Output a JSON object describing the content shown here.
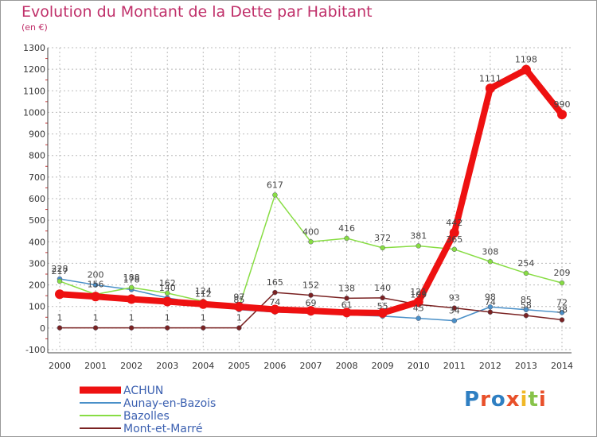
{
  "chart_data": {
    "type": "line",
    "title": "Evolution du Montant de la Dette par Habitant",
    "subtitle": "(en €)",
    "x": [
      "2000",
      "2001",
      "2002",
      "2003",
      "2004",
      "2005",
      "2006",
      "2007",
      "2008",
      "2009",
      "2010",
      "2011",
      "2012",
      "2013",
      "2014"
    ],
    "ylim": [
      -100,
      1300
    ],
    "yticks": [
      -100,
      0,
      100,
      200,
      300,
      400,
      500,
      600,
      700,
      800,
      900,
      1000,
      1100,
      1200,
      1300
    ],
    "grid": true,
    "legend": "bottom-left",
    "series": [
      {
        "name": "ACHUN",
        "color": "#ee1111",
        "values": [
          157,
          146,
          134,
          123,
          111,
          99,
          86,
          80,
          72,
          70,
          121,
          442,
          1111,
          1198,
          990
        ],
        "labels": [
          "",
          "",
          "",
          "",
          "",
          "",
          "",
          "",
          "",
          "",
          "121",
          "442",
          "1111",
          "1198",
          "990"
        ]
      },
      {
        "name": "Aunay-en-Bazois",
        "color": "#4a90c8",
        "values": [
          228,
          200,
          178,
          140,
          112,
          85,
          74,
          69,
          61,
          55,
          45,
          34,
          98,
          85,
          72
        ],
        "labels": [
          "228",
          "200",
          "178",
          "140",
          "112",
          "85",
          "74",
          "69",
          "61",
          "55",
          "45",
          "34",
          "98",
          "85",
          "72"
        ]
      },
      {
        "name": "Bazolles",
        "color": "#88dd44",
        "values": [
          217,
          156,
          188,
          162,
          124,
          97,
          617,
          400,
          416,
          372,
          381,
          365,
          308,
          254,
          209
        ],
        "labels": [
          "217",
          "156",
          "188",
          "162",
          "124",
          "97",
          "617",
          "400",
          "416",
          "372",
          "381",
          "365",
          "308",
          "254",
          "209"
        ]
      },
      {
        "name": "Mont-et-Marré",
        "color": "#7a2222",
        "values": [
          1,
          1,
          1,
          1,
          1,
          1,
          165,
          152,
          138,
          140,
          109,
          93,
          74,
          58,
          38
        ],
        "labels": [
          "1",
          "1",
          "1",
          "1",
          "1",
          "1",
          "165",
          "152",
          "138",
          "140",
          "109",
          "93",
          "74",
          "58",
          "38"
        ]
      }
    ]
  },
  "logo": {
    "letters": [
      "P",
      "r",
      "o",
      "x",
      "i",
      "t",
      "i"
    ],
    "colors": [
      "#2f7fc2",
      "#e8502a",
      "#2f7fc2",
      "#e8502a",
      "#f0b828",
      "#88c34a",
      "#e8502a"
    ]
  }
}
